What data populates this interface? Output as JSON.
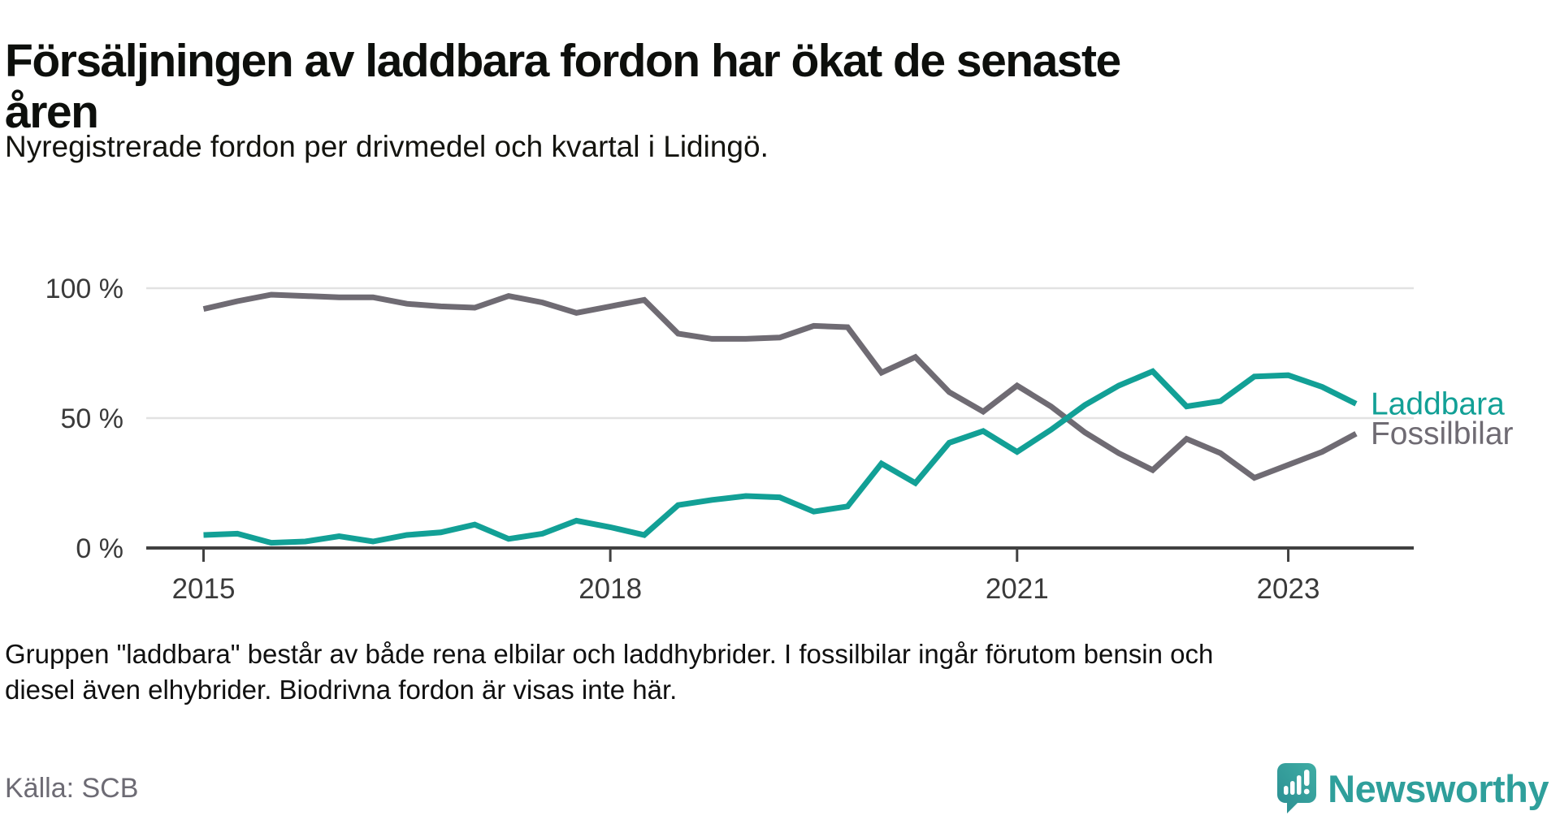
{
  "title": "Försäljningen av laddbara fordon har ökat de senaste åren",
  "subtitle": "Nyregistrerade fordon per drivmedel och kvartal i Lidingö.",
  "footnote": "Gruppen \"laddbara\" består av både rena elbilar och laddhybrider. I fossilbilar ingår förutom bensin och diesel även elhybrider. Biodrivna fordon är visas inte här.",
  "source": "Källa: SCB",
  "branding": {
    "name": "Newsworthy",
    "color": "#2f9f9b",
    "logo_color": "#38a39d",
    "logo_color_dark": "#2b8e92"
  },
  "chart_data": {
    "type": "line",
    "x": [
      "2015 Q1",
      "2015 Q2",
      "2015 Q3",
      "2015 Q4",
      "2016 Q1",
      "2016 Q2",
      "2016 Q3",
      "2016 Q4",
      "2017 Q1",
      "2017 Q2",
      "2017 Q3",
      "2017 Q4",
      "2018 Q1",
      "2018 Q2",
      "2018 Q3",
      "2018 Q4",
      "2019 Q1",
      "2019 Q2",
      "2019 Q3",
      "2019 Q4",
      "2020 Q1",
      "2020 Q2",
      "2020 Q3",
      "2020 Q4",
      "2021 Q1",
      "2021 Q2",
      "2021 Q3",
      "2021 Q4",
      "2022 Q1",
      "2022 Q2",
      "2022 Q3",
      "2022 Q4",
      "2023 Q1",
      "2023 Q2",
      "2023 Q3"
    ],
    "series": [
      {
        "name": "Fossilbilar",
        "color": "#6f6b73",
        "values": [
          92,
          95,
          97.5,
          97,
          96.5,
          96.5,
          94,
          93,
          92.5,
          97,
          94.5,
          90.5,
          93,
          95.5,
          82.5,
          80.5,
          80.5,
          81,
          85.5,
          85,
          67.5,
          73.5,
          60,
          52.5,
          62.5,
          54.5,
          44.5,
          36.5,
          30,
          42,
          36.5,
          27,
          32,
          37,
          44
        ]
      },
      {
        "name": "Laddbara",
        "color": "#12a096",
        "values": [
          5,
          5.5,
          2,
          2.5,
          4.5,
          2.5,
          5,
          6,
          9,
          3.5,
          5.5,
          10.5,
          8,
          5,
          16.5,
          18.5,
          20,
          19.5,
          14,
          16,
          32.5,
          25,
          40.5,
          45,
          37,
          45.5,
          55,
          62.5,
          68,
          54.5,
          56.5,
          66,
          66.5,
          62,
          55.5
        ]
      }
    ],
    "ylim": [
      0,
      100
    ],
    "yticks": [
      {
        "value": 0,
        "label": "0 %"
      },
      {
        "value": 50,
        "label": "50 %"
      },
      {
        "value": 100,
        "label": "100 %"
      }
    ],
    "xticks": [
      {
        "index": 0,
        "label": "2015"
      },
      {
        "index": 12,
        "label": "2018"
      },
      {
        "index": 24,
        "label": "2021"
      },
      {
        "index": 32,
        "label": "2023"
      }
    ],
    "grid": true,
    "legend_position": "end-of-line",
    "grid_color": "#e2e2e2",
    "axis_color": "#414141",
    "tick_label_color": "#3a3a3a"
  }
}
